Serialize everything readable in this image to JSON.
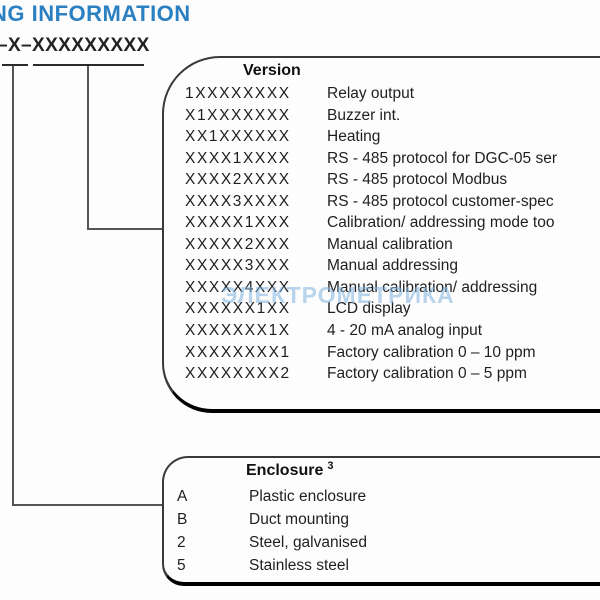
{
  "page": {
    "heading": "NG INFORMATION",
    "part_code": "–X–XXXXXXXXX",
    "watermark": "ЭЛЕКТРОМЕТРИКА"
  },
  "colors": {
    "heading_blue": "#2b80c1",
    "text": "#1f1f1f",
    "watermark_blue": "#7db2de",
    "line": "#555555"
  },
  "version": {
    "title": "Version",
    "rows": [
      {
        "code": "1XXXXXXXX",
        "desc": "Relay output"
      },
      {
        "code": "X1XXXXXXX",
        "desc": "Buzzer int."
      },
      {
        "code": "XX1XXXXXX",
        "desc": "Heating"
      },
      {
        "code": "XXXX1XXXX",
        "desc": "RS - 485 protocol for DGC-05 ser"
      },
      {
        "code": "XXXX2XXXX",
        "desc": "RS - 485 protocol Modbus"
      },
      {
        "code": "XXXX3XXXX",
        "desc": "RS - 485 protocol customer-spec"
      },
      {
        "code": "XXXXX1XXX",
        "desc": "Calibration/ addressing mode too"
      },
      {
        "code": "XXXXX2XXX",
        "desc": "Manual calibration"
      },
      {
        "code": "XXXXX3XXX",
        "desc": "Manual addressing"
      },
      {
        "code": "XXXXX4XXX",
        "desc": "Manual calibration/ addressing"
      },
      {
        "code": "XXXXXX1XX",
        "desc": "LCD display"
      },
      {
        "code": "XXXXXXX1X",
        "desc": "4 - 20 mA analog input"
      },
      {
        "code": "XXXXXXXX1",
        "desc": "Factory calibration 0 – 10 ppm"
      },
      {
        "code": "XXXXXXXX2",
        "desc": "Factory calibration 0 – 5 ppm"
      }
    ]
  },
  "enclosure": {
    "title": "Enclosure",
    "footnote_marker": "3",
    "rows": [
      {
        "code": "A",
        "desc": "Plastic enclosure"
      },
      {
        "code": "B",
        "desc": "Duct mounting"
      },
      {
        "code": "2",
        "desc": "Steel, galvanised"
      },
      {
        "code": "5",
        "desc": "Stainless steel"
      }
    ]
  }
}
